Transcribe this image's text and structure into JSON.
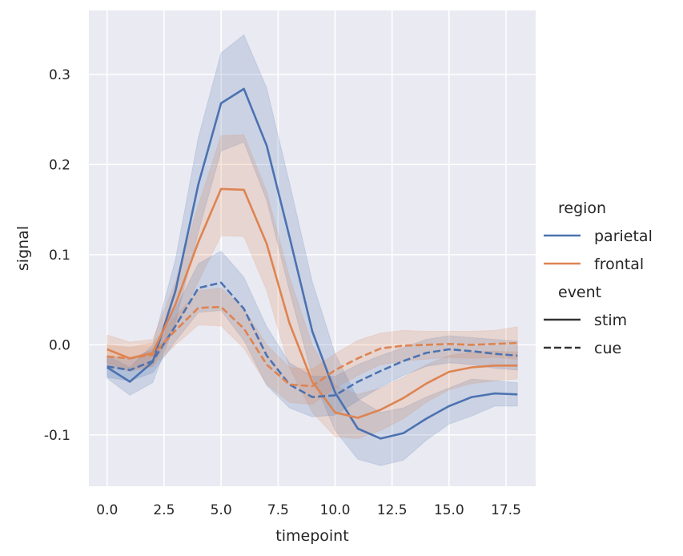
{
  "chart_data": {
    "type": "line",
    "title": "",
    "xlabel": "timepoint",
    "ylabel": "signal",
    "xlim": [
      -0.8,
      18.8
    ],
    "ylim": [
      -0.157,
      0.371
    ],
    "grid": true,
    "x_ticks": [
      0.0,
      2.5,
      5.0,
      7.5,
      10.0,
      12.5,
      15.0,
      17.5
    ],
    "x_tick_labels": [
      "0.0",
      "2.5",
      "5.0",
      "7.5",
      "10.0",
      "12.5",
      "15.0",
      "17.5"
    ],
    "y_ticks": [
      -0.1,
      0.0,
      0.1,
      0.2,
      0.3
    ],
    "y_tick_labels": [
      "-0.1",
      "0.0",
      "0.1",
      "0.2",
      "0.3"
    ],
    "x": [
      0,
      1,
      2,
      3,
      4,
      5,
      6,
      7,
      8,
      9,
      10,
      11,
      12,
      13,
      14,
      15,
      16,
      17,
      18
    ],
    "series": [
      {
        "name": "parietal-stim",
        "region": "parietal",
        "event": "stim",
        "color": "#4c72b0",
        "dash": "solid",
        "values": [
          -0.025,
          -0.041,
          -0.019,
          0.06,
          0.178,
          0.268,
          0.284,
          0.221,
          0.12,
          0.015,
          -0.053,
          -0.093,
          -0.104,
          -0.098,
          -0.082,
          -0.068,
          -0.058,
          -0.054,
          -0.055
        ],
        "ci_upper": [
          -0.012,
          -0.025,
          0.0,
          0.095,
          0.23,
          0.324,
          0.344,
          0.285,
          0.18,
          0.07,
          -0.01,
          -0.06,
          -0.075,
          -0.07,
          -0.058,
          -0.048,
          -0.038,
          -0.04,
          -0.042
        ],
        "ci_lower": [
          -0.037,
          -0.056,
          -0.042,
          0.025,
          0.125,
          0.215,
          0.225,
          0.16,
          0.06,
          -0.035,
          -0.095,
          -0.127,
          -0.134,
          -0.128,
          -0.106,
          -0.088,
          -0.079,
          -0.068,
          -0.068
        ]
      },
      {
        "name": "frontal-stim",
        "region": "frontal",
        "event": "stim",
        "color": "#dd8452",
        "dash": "solid",
        "values": [
          -0.005,
          -0.015,
          -0.009,
          0.045,
          0.114,
          0.173,
          0.172,
          0.112,
          0.024,
          -0.041,
          -0.075,
          -0.081,
          -0.072,
          -0.059,
          -0.043,
          -0.03,
          -0.025,
          -0.023,
          -0.023
        ],
        "ci_upper": [
          0.011,
          0.003,
          0.006,
          0.07,
          0.155,
          0.232,
          0.233,
          0.17,
          0.075,
          0.0,
          -0.045,
          -0.055,
          -0.048,
          -0.036,
          -0.022,
          -0.012,
          -0.008,
          -0.007,
          -0.008
        ],
        "ci_lower": [
          -0.02,
          -0.03,
          -0.024,
          0.02,
          0.07,
          0.121,
          0.12,
          0.06,
          -0.025,
          -0.075,
          -0.102,
          -0.104,
          -0.095,
          -0.082,
          -0.064,
          -0.05,
          -0.043,
          -0.04,
          -0.038
        ]
      },
      {
        "name": "parietal-cue",
        "region": "parietal",
        "event": "cue",
        "color": "#4c72b0",
        "dash": "dashed",
        "values": [
          -0.024,
          -0.028,
          -0.018,
          0.021,
          0.063,
          0.069,
          0.04,
          -0.012,
          -0.044,
          -0.058,
          -0.056,
          -0.041,
          -0.029,
          -0.018,
          -0.009,
          -0.005,
          -0.007,
          -0.01,
          -0.012
        ],
        "ci_upper": [
          -0.012,
          -0.016,
          -0.005,
          0.04,
          0.09,
          0.104,
          0.075,
          0.02,
          -0.02,
          -0.035,
          -0.035,
          -0.022,
          -0.012,
          -0.003,
          0.006,
          0.01,
          0.008,
          0.006,
          0.004
        ],
        "ci_lower": [
          -0.036,
          -0.04,
          -0.031,
          0.004,
          0.036,
          0.038,
          0.005,
          -0.045,
          -0.07,
          -0.08,
          -0.078,
          -0.062,
          -0.047,
          -0.034,
          -0.024,
          -0.02,
          -0.022,
          -0.026,
          -0.028
        ]
      },
      {
        "name": "frontal-cue",
        "region": "frontal",
        "event": "cue",
        "color": "#dd8452",
        "dash": "dashed",
        "values": [
          -0.013,
          -0.015,
          -0.011,
          0.016,
          0.041,
          0.042,
          0.018,
          -0.022,
          -0.044,
          -0.046,
          -0.028,
          -0.015,
          -0.004,
          -0.001,
          0.0,
          0.001,
          0.0,
          0.001,
          0.002
        ],
        "ci_upper": [
          0.0,
          -0.003,
          0.002,
          0.032,
          0.06,
          0.063,
          0.04,
          0.0,
          -0.025,
          -0.027,
          -0.01,
          0.005,
          0.013,
          0.016,
          0.015,
          0.015,
          0.015,
          0.016,
          0.02
        ],
        "ci_lower": [
          -0.026,
          -0.027,
          -0.024,
          0.0,
          0.022,
          0.021,
          -0.004,
          -0.044,
          -0.064,
          -0.066,
          -0.048,
          -0.034,
          -0.022,
          -0.018,
          -0.016,
          -0.014,
          -0.015,
          -0.014,
          -0.016
        ]
      }
    ],
    "legend": {
      "placement": "right",
      "sections": [
        {
          "title": "region",
          "entries": [
            {
              "label": "parietal",
              "color": "#4c72b0",
              "dash": "solid"
            },
            {
              "label": "frontal",
              "color": "#dd8452",
              "dash": "solid"
            }
          ]
        },
        {
          "title": "event",
          "entries": [
            {
              "label": "stim",
              "color": "#333333",
              "dash": "solid"
            },
            {
              "label": "cue",
              "color": "#333333",
              "dash": "dashed"
            }
          ]
        }
      ]
    },
    "plot_background": "#eaeaf2",
    "grid_color": "#ffffff"
  }
}
